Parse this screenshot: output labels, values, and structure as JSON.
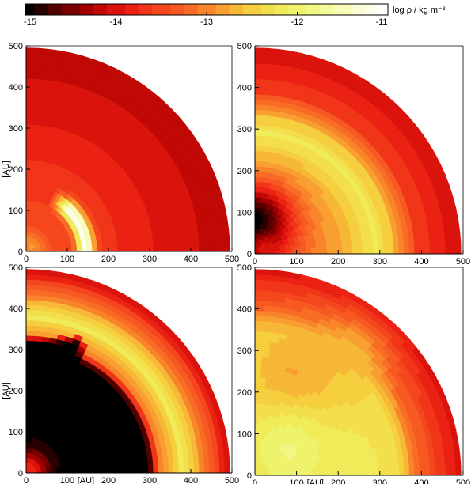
{
  "colorbar": {
    "label": "log ρ / kg m⁻³",
    "min": -15,
    "max": -11,
    "ticks": [
      -15,
      -14,
      -13,
      -12,
      -11
    ],
    "tick_labels": [
      "-15",
      "-14",
      "-13",
      "-12",
      "-11"
    ],
    "levels": 24,
    "colors": [
      "#000000",
      "#5a0000",
      "#b00000",
      "#e81a10",
      "#f5421c",
      "#f86a26",
      "#f9a030",
      "#f4d640",
      "#eef060",
      "#f2fa90",
      "#fbfdd0",
      "#ffffff"
    ]
  },
  "chart_data": [
    {
      "type": "heatmap",
      "panel": "top-left",
      "x_range": [
        0,
        500
      ],
      "y_range": [
        0,
        500
      ],
      "xticks": [
        0,
        100,
        200,
        300,
        400,
        500
      ],
      "yticks": [
        0,
        100,
        200,
        300,
        400,
        500
      ],
      "xlabel": "",
      "ylabel": "[AU]",
      "outer_radius": 495,
      "base_log_density": -13.9,
      "radial_profile": [
        [
          0,
          -13.3
        ],
        [
          60,
          -13.5
        ],
        [
          140,
          -13.6
        ],
        [
          300,
          -13.9
        ],
        [
          495,
          -14.2
        ]
      ],
      "features": [
        {
          "kind": "ring",
          "r": 145,
          "width": 15,
          "peak": -11.1,
          "angle_max_deg": 45
        },
        {
          "kind": "blob",
          "x": 10,
          "y": 10,
          "r": 25,
          "peak": -12.9
        }
      ]
    },
    {
      "type": "heatmap",
      "panel": "top-right",
      "x_range": [
        0,
        500
      ],
      "y_range": [
        0,
        500
      ],
      "xticks": [
        0,
        100,
        200,
        300,
        400,
        500
      ],
      "yticks": [
        0,
        100,
        200,
        300,
        400,
        500
      ],
      "xlabel": "",
      "ylabel": "",
      "outer_radius": 495,
      "radial_profile": [
        [
          0,
          -13.6
        ],
        [
          120,
          -13.1
        ],
        [
          220,
          -12.7
        ],
        [
          290,
          -12.2
        ],
        [
          330,
          -12.6
        ],
        [
          390,
          -13.6
        ],
        [
          495,
          -14.1
        ]
      ],
      "features": [
        {
          "kind": "hole",
          "x": 0,
          "y": 80,
          "r": 60,
          "depth": -15
        },
        {
          "kind": "blob",
          "x": 25,
          "y": 15,
          "r": 20,
          "peak": -14.0
        }
      ]
    },
    {
      "type": "heatmap",
      "panel": "bottom-left",
      "x_range": [
        0,
        500
      ],
      "y_range": [
        0,
        500
      ],
      "xticks": [
        0,
        100,
        200,
        300,
        400,
        500
      ],
      "yticks": [
        0,
        100,
        200,
        300,
        400,
        500
      ],
      "xlabel": "[AU]",
      "ylabel": "[AU]",
      "outer_radius": 495,
      "radial_profile": [
        [
          0,
          -15
        ],
        [
          300,
          -15
        ],
        [
          320,
          -13.2
        ],
        [
          380,
          -12.2
        ],
        [
          420,
          -12.8
        ],
        [
          495,
          -14.1
        ]
      ],
      "features": [
        {
          "kind": "box-void",
          "x_max": 140,
          "y_max": 330
        },
        {
          "kind": "blob",
          "x": 10,
          "y": 10,
          "r": 30,
          "peak": -13.8
        }
      ]
    },
    {
      "type": "heatmap",
      "panel": "bottom-right",
      "x_range": [
        0,
        500
      ],
      "y_range": [
        0,
        500
      ],
      "xticks": [
        0,
        100,
        200,
        300,
        400,
        500
      ],
      "yticks": [
        0,
        100,
        200,
        300,
        400,
        500
      ],
      "xlabel": "[AU]",
      "ylabel": "",
      "outer_radius": 495,
      "radial_profile": [
        [
          0,
          -12.4
        ],
        [
          250,
          -12.2
        ],
        [
          340,
          -12.3
        ],
        [
          400,
          -13.3
        ],
        [
          495,
          -14.0
        ]
      ],
      "features": [
        {
          "kind": "blob",
          "x": 100,
          "y": 240,
          "r": 90,
          "peak": -12.8
        },
        {
          "kind": "blob",
          "x": 220,
          "y": 280,
          "r": 60,
          "peak": -12.6
        },
        {
          "kind": "blob",
          "x": 80,
          "y": 60,
          "r": 70,
          "peak": -11.9
        }
      ]
    }
  ]
}
